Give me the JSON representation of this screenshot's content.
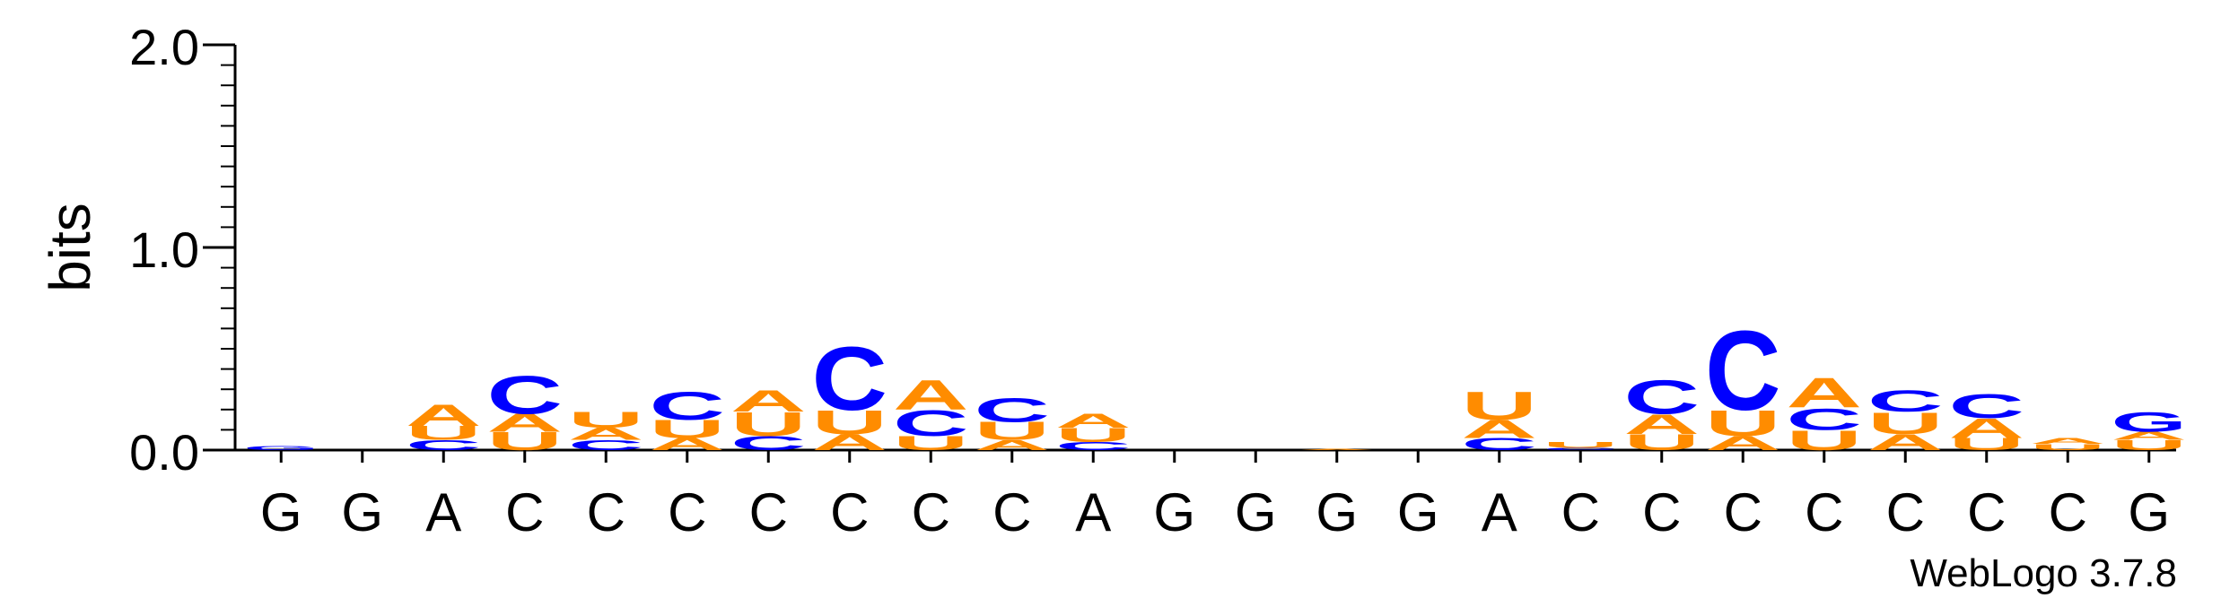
{
  "chart_data": {
    "type": "sequence-logo",
    "ylabel": "bits",
    "xlabel": "",
    "ylim": [
      0,
      2.0
    ],
    "y_ticks": [
      "0.0",
      "1.0",
      "2.0"
    ],
    "categories": [
      "G",
      "G",
      "A",
      "C",
      "C",
      "C",
      "C",
      "C",
      "C",
      "C",
      "A",
      "G",
      "G",
      "G",
      "G",
      "A",
      "C",
      "C",
      "C",
      "C",
      "C",
      "C",
      "C",
      "G"
    ],
    "colors": {
      "A": "#FF8C00",
      "U": "#FF8C00",
      "C": "#0000FF",
      "G": "#0000FF",
      "axis": "#000000"
    },
    "stacks": [
      [
        {
          "letter": "G",
          "bits": 0.02
        }
      ],
      [],
      [
        {
          "letter": "C",
          "bits": 0.05
        },
        {
          "letter": "U",
          "bits": 0.07
        },
        {
          "letter": "A",
          "bits": 0.11
        }
      ],
      [
        {
          "letter": "U",
          "bits": 0.09
        },
        {
          "letter": "A",
          "bits": 0.09
        },
        {
          "letter": "C",
          "bits": 0.19
        }
      ],
      [
        {
          "letter": "C",
          "bits": 0.05
        },
        {
          "letter": "A",
          "bits": 0.06
        },
        {
          "letter": "U",
          "bits": 0.08
        }
      ],
      [
        {
          "letter": "A",
          "bits": 0.06
        },
        {
          "letter": "U",
          "bits": 0.09
        },
        {
          "letter": "C",
          "bits": 0.14
        }
      ],
      [
        {
          "letter": "C",
          "bits": 0.07
        },
        {
          "letter": "U",
          "bits": 0.12
        },
        {
          "letter": "A",
          "bits": 0.11
        }
      ],
      [
        {
          "letter": "A",
          "bits": 0.08
        },
        {
          "letter": "U",
          "bits": 0.12
        },
        {
          "letter": "C",
          "bits": 0.32
        }
      ],
      [
        {
          "letter": "U",
          "bits": 0.07
        },
        {
          "letter": "C",
          "bits": 0.13
        },
        {
          "letter": "A",
          "bits": 0.15
        }
      ],
      [
        {
          "letter": "A",
          "bits": 0.05
        },
        {
          "letter": "U",
          "bits": 0.09
        },
        {
          "letter": "C",
          "bits": 0.12
        }
      ],
      [
        {
          "letter": "C",
          "bits": 0.04
        },
        {
          "letter": "U",
          "bits": 0.07
        },
        {
          "letter": "A",
          "bits": 0.07
        }
      ],
      [],
      [],
      [
        {
          "letter": "A",
          "bits": 0.005
        }
      ],
      [],
      [
        {
          "letter": "C",
          "bits": 0.06
        },
        {
          "letter": "A",
          "bits": 0.09
        },
        {
          "letter": "U",
          "bits": 0.14
        }
      ],
      [
        {
          "letter": "C",
          "bits": 0.01
        },
        {
          "letter": "U",
          "bits": 0.03
        }
      ],
      [
        {
          "letter": "U",
          "bits": 0.08
        },
        {
          "letter": "A",
          "bits": 0.1
        },
        {
          "letter": "C",
          "bits": 0.17
        }
      ],
      [
        {
          "letter": "A",
          "bits": 0.07
        },
        {
          "letter": "U",
          "bits": 0.13
        },
        {
          "letter": "C",
          "bits": 0.4
        }
      ],
      [
        {
          "letter": "U",
          "bits": 0.1
        },
        {
          "letter": "C",
          "bits": 0.11
        },
        {
          "letter": "A",
          "bits": 0.15
        }
      ],
      [
        {
          "letter": "A",
          "bits": 0.08
        },
        {
          "letter": "U",
          "bits": 0.11
        },
        {
          "letter": "C",
          "bits": 0.11
        }
      ],
      [
        {
          "letter": "U",
          "bits": 0.06
        },
        {
          "letter": "A",
          "bits": 0.1
        },
        {
          "letter": "C",
          "bits": 0.12
        }
      ],
      [
        {
          "letter": "U",
          "bits": 0.03
        },
        {
          "letter": "A",
          "bits": 0.03
        }
      ],
      [
        {
          "letter": "U",
          "bits": 0.05
        },
        {
          "letter": "A",
          "bits": 0.04
        },
        {
          "letter": "G",
          "bits": 0.1
        }
      ]
    ]
  },
  "footer": {
    "credit": "WebLogo 3.7.8"
  }
}
